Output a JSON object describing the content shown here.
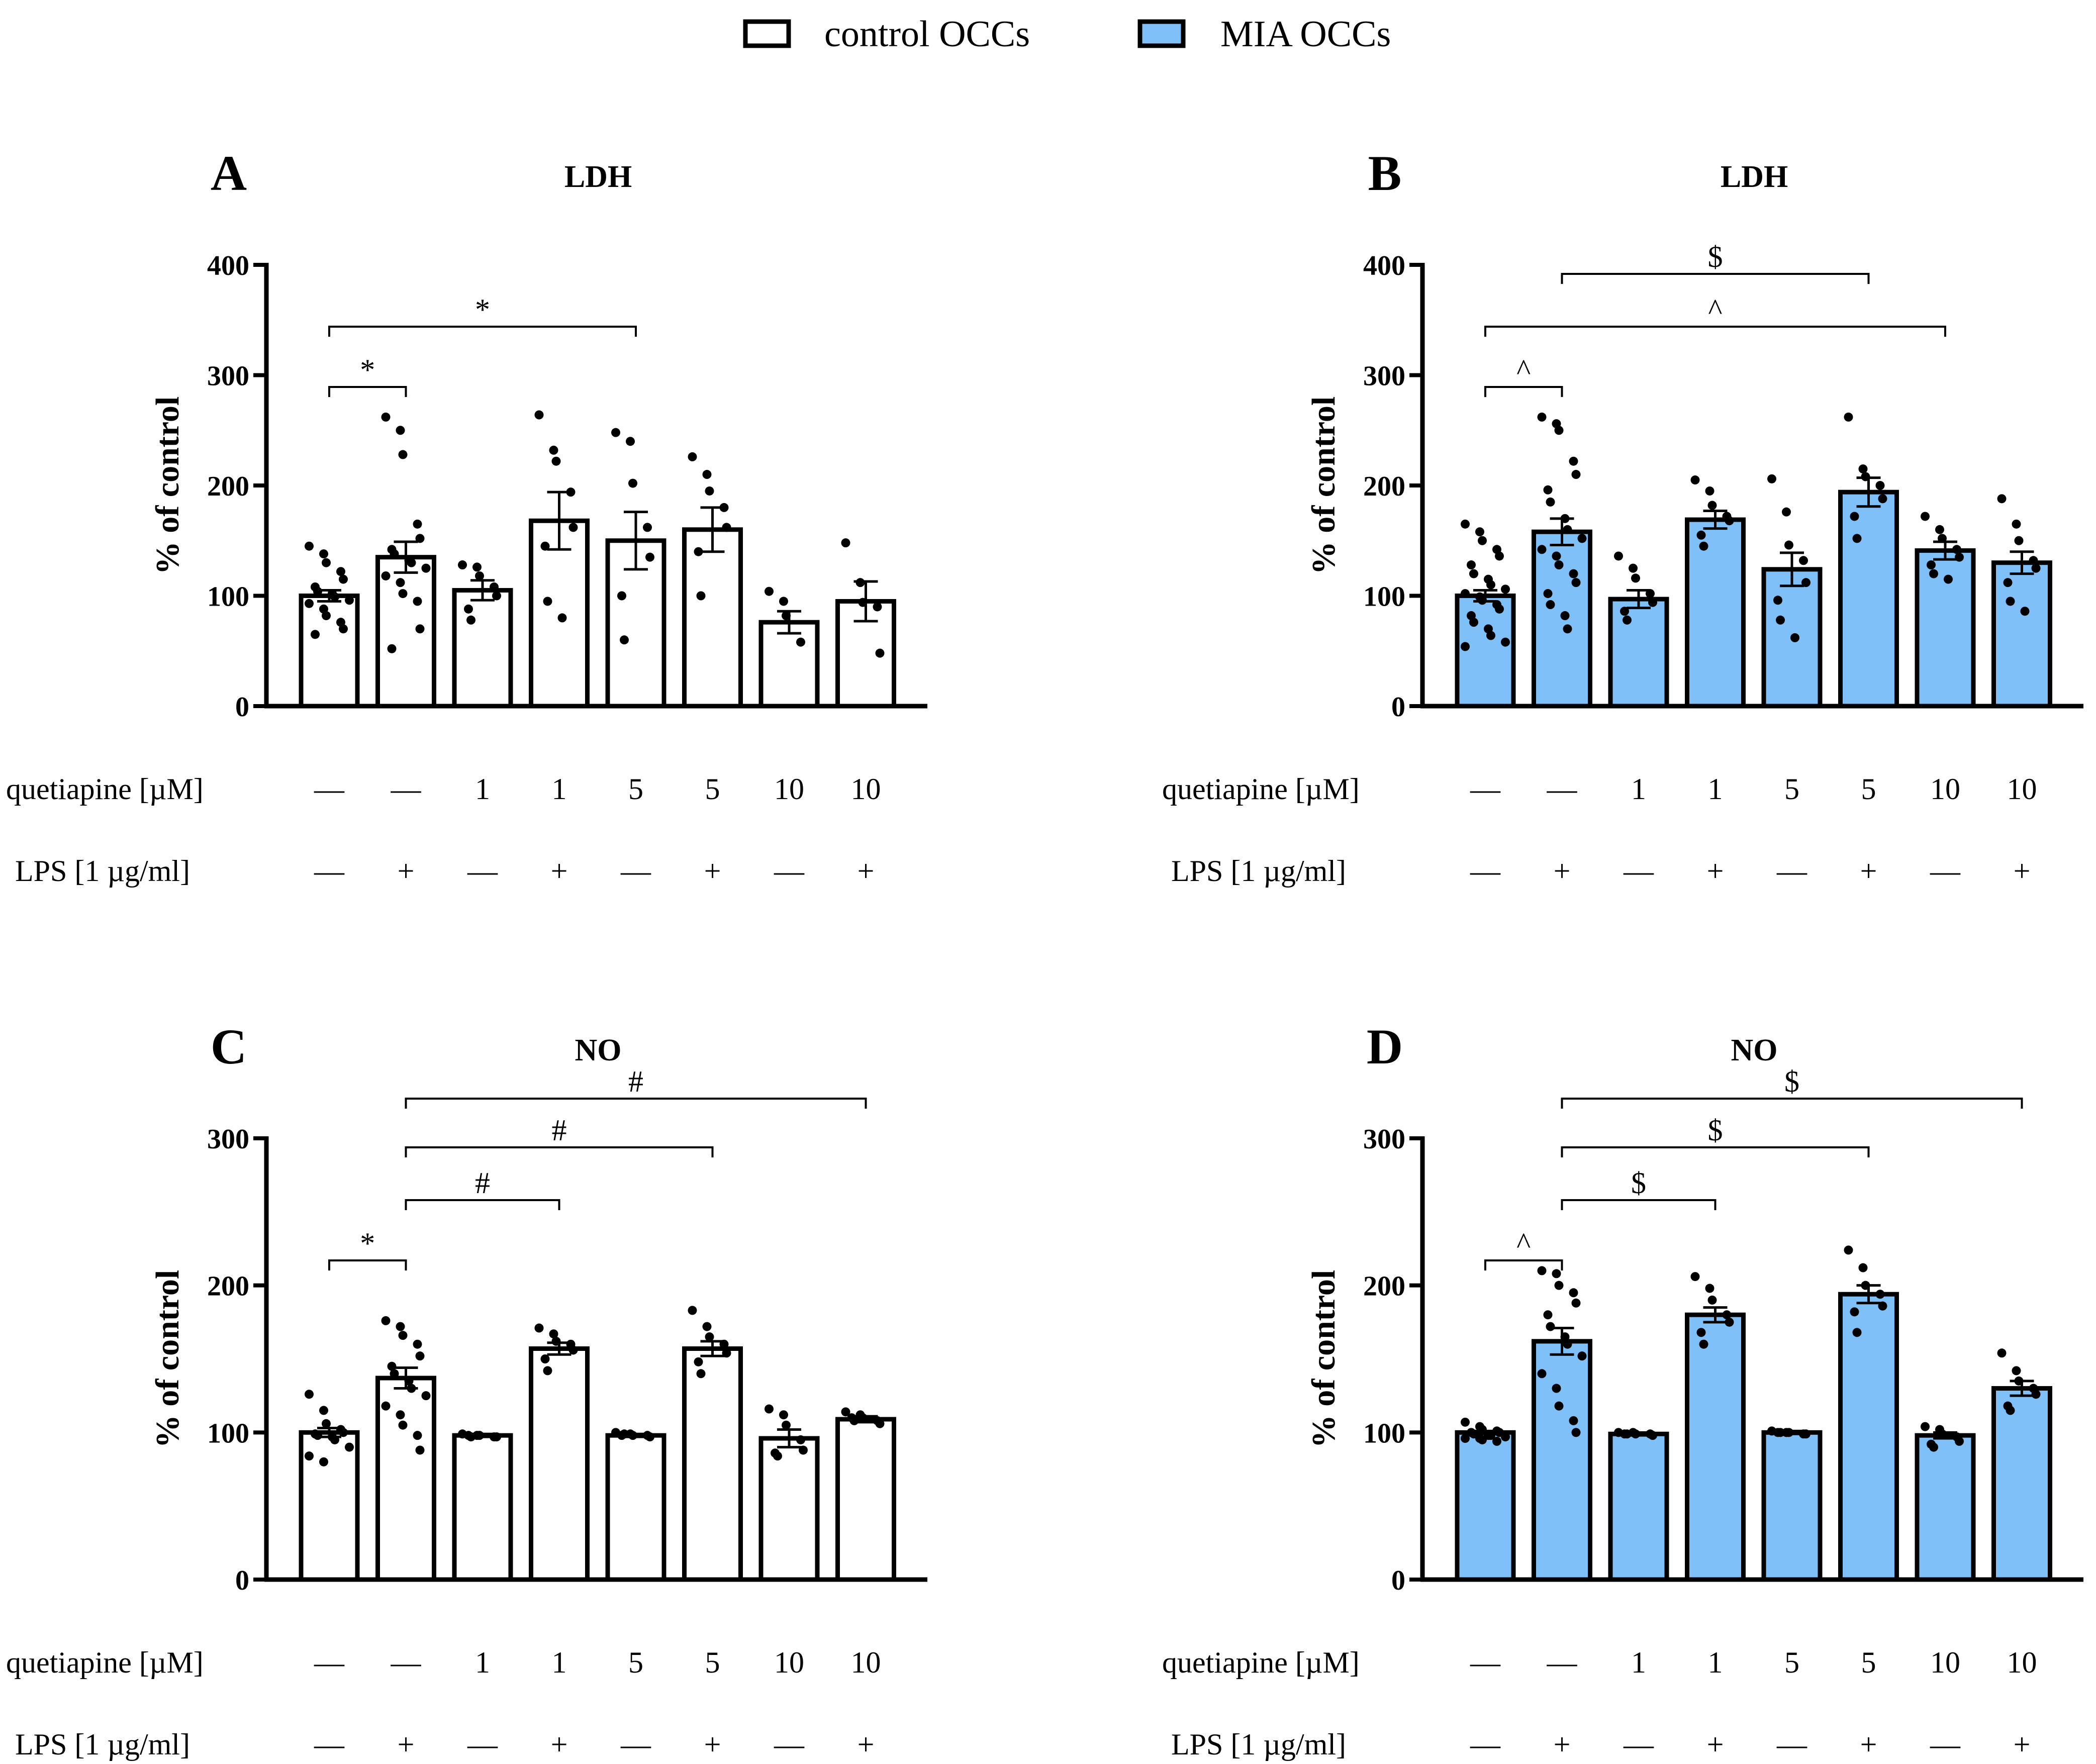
{
  "legend": [
    {
      "label": "control OCCs",
      "fill": "#ffffff"
    },
    {
      "label": "MIA OCCs",
      "fill": "#7ec0f7"
    }
  ],
  "colors": {
    "control": "#ffffff",
    "mia": "#7ec0f7",
    "stroke": "#000000"
  },
  "row_labels": {
    "quetiapine": "quetiapine [µM]",
    "lps": "LPS [1 µg/ml]"
  },
  "quetiapine_values": [
    "—",
    "—",
    "1",
    "1",
    "5",
    "5",
    "10",
    "10"
  ],
  "lps_values": [
    "—",
    "+",
    "—",
    "+",
    "—",
    "+",
    "—",
    "+"
  ],
  "chart_data": [
    {
      "id": "A",
      "type": "bar",
      "title": "LDH",
      "ylabel": "% of control",
      "group": "control",
      "ylim": [
        0,
        400
      ],
      "yticks": [
        0,
        100,
        200,
        300,
        400
      ],
      "means": [
        100,
        135,
        105,
        168,
        150,
        160,
        76,
        95
      ],
      "sem": [
        5,
        14,
        9,
        26,
        26,
        20,
        10,
        18
      ],
      "points": [
        [
          145,
          138,
          130,
          122,
          115,
          108,
          104,
          102,
          99,
          96,
          93,
          88,
          82,
          76,
          70,
          65
        ],
        [
          262,
          250,
          228,
          165,
          152,
          142,
          138,
          132,
          130,
          125,
          118,
          112,
          102,
          95,
          70,
          52
        ],
        [
          128,
          126,
          118,
          108,
          100,
          88,
          78
        ],
        [
          264,
          232,
          222,
          194,
          162,
          145,
          95,
          80
        ],
        [
          248,
          240,
          202,
          162,
          135,
          100,
          60
        ],
        [
          226,
          210,
          195,
          180,
          162,
          140,
          100
        ],
        [
          104,
          95,
          82,
          58
        ],
        [
          148,
          112,
          94,
          90,
          48
        ]
      ],
      "significance": [
        {
          "from": 0,
          "to": 1,
          "symbol": "*"
        },
        {
          "from": 0,
          "to": 4,
          "symbol": "*"
        }
      ]
    },
    {
      "id": "B",
      "type": "bar",
      "title": "LDH",
      "ylabel": "% of control",
      "group": "mia",
      "ylim": [
        0,
        400
      ],
      "yticks": [
        0,
        100,
        200,
        300,
        400
      ],
      "means": [
        100,
        158,
        97,
        169,
        124,
        194,
        141,
        130
      ],
      "sem": [
        5,
        12,
        8,
        8,
        15,
        13,
        8,
        10
      ],
      "points": [
        [
          165,
          158,
          150,
          142,
          136,
          128,
          120,
          115,
          110,
          106,
          102,
          99,
          96,
          92,
          88,
          82,
          76,
          70,
          64,
          58,
          54
        ],
        [
          262,
          256,
          250,
          222,
          210,
          196,
          185,
          170,
          160,
          152,
          142,
          136,
          128,
          120,
          112,
          102,
          92,
          82,
          70
        ],
        [
          136,
          125,
          116,
          102,
          94,
          86,
          78
        ],
        [
          205,
          195,
          182,
          172,
          168,
          155,
          145
        ],
        [
          206,
          176,
          146,
          132,
          112,
          96,
          78,
          62
        ],
        [
          262,
          215,
          208,
          200,
          188,
          172,
          152
        ],
        [
          172,
          160,
          152,
          142,
          135,
          128,
          120,
          115
        ],
        [
          188,
          165,
          150,
          132,
          125,
          112,
          95,
          86
        ]
      ],
      "significance": [
        {
          "from": 0,
          "to": 1,
          "symbol": "^"
        },
        {
          "from": 0,
          "to": 6,
          "symbol": "^"
        },
        {
          "from": 1,
          "to": 5,
          "symbol": "$"
        }
      ]
    },
    {
      "id": "C",
      "type": "bar",
      "title": "NO",
      "ylabel": "% of control",
      "group": "control",
      "ylim": [
        0,
        300
      ],
      "yticks": [
        0,
        100,
        200,
        300
      ],
      "means": [
        100,
        137,
        98,
        157,
        98,
        157,
        96,
        109
      ],
      "sem": [
        3,
        7,
        1,
        4,
        1,
        5,
        6,
        2
      ],
      "points": [
        [
          126,
          115,
          106,
          102,
          100,
          99,
          98,
          97,
          95,
          90,
          84,
          80
        ],
        [
          176,
          172,
          166,
          160,
          152,
          145,
          140,
          135,
          130,
          125,
          118,
          112,
          105,
          98,
          88
        ],
        [
          99,
          98,
          98,
          97,
          97,
          98,
          97
        ],
        [
          171,
          167,
          162,
          160,
          156,
          150,
          142
        ],
        [
          100,
          99,
          98,
          98,
          97,
          98,
          99
        ],
        [
          183,
          172,
          165,
          160,
          154,
          148,
          140
        ],
        [
          116,
          112,
          105,
          95,
          88,
          86,
          84
        ],
        [
          114,
          112,
          110,
          108,
          106,
          110,
          108
        ]
      ],
      "significance": [
        {
          "from": 0,
          "to": 1,
          "symbol": "*"
        },
        {
          "from": 1,
          "to": 3,
          "symbol": "#"
        },
        {
          "from": 1,
          "to": 5,
          "symbol": "#"
        },
        {
          "from": 1,
          "to": 7,
          "symbol": "#"
        }
      ]
    },
    {
      "id": "D",
      "type": "bar",
      "title": "NO",
      "ylabel": "% of control",
      "group": "mia",
      "ylim": [
        0,
        300
      ],
      "yticks": [
        0,
        100,
        200,
        300
      ],
      "means": [
        100,
        162,
        99,
        180,
        100,
        194,
        98,
        130
      ],
      "sem": [
        1,
        9,
        1,
        5,
        1,
        6,
        2,
        5
      ],
      "points": [
        [
          107,
          104,
          102,
          101,
          100,
          100,
          99,
          98,
          98,
          97,
          96,
          96,
          95,
          94
        ],
        [
          210,
          208,
          200,
          195,
          188,
          180,
          172,
          165,
          160,
          152,
          140,
          130,
          118,
          108,
          100
        ],
        [
          100,
          100,
          99,
          99,
          98,
          99,
          99
        ],
        [
          206,
          198,
          190,
          180,
          175,
          168,
          160
        ],
        [
          101,
          100,
          100,
          99,
          99,
          100,
          100
        ],
        [
          224,
          212,
          200,
          194,
          186,
          182,
          168
        ],
        [
          104,
          102,
          99,
          97,
          94,
          92,
          90
        ],
        [
          154,
          142,
          135,
          130,
          126,
          118,
          115
        ]
      ],
      "significance": [
        {
          "from": 0,
          "to": 1,
          "symbol": "^"
        },
        {
          "from": 1,
          "to": 3,
          "symbol": "$"
        },
        {
          "from": 1,
          "to": 5,
          "symbol": "$"
        },
        {
          "from": 1,
          "to": 7,
          "symbol": "$"
        }
      ]
    }
  ]
}
